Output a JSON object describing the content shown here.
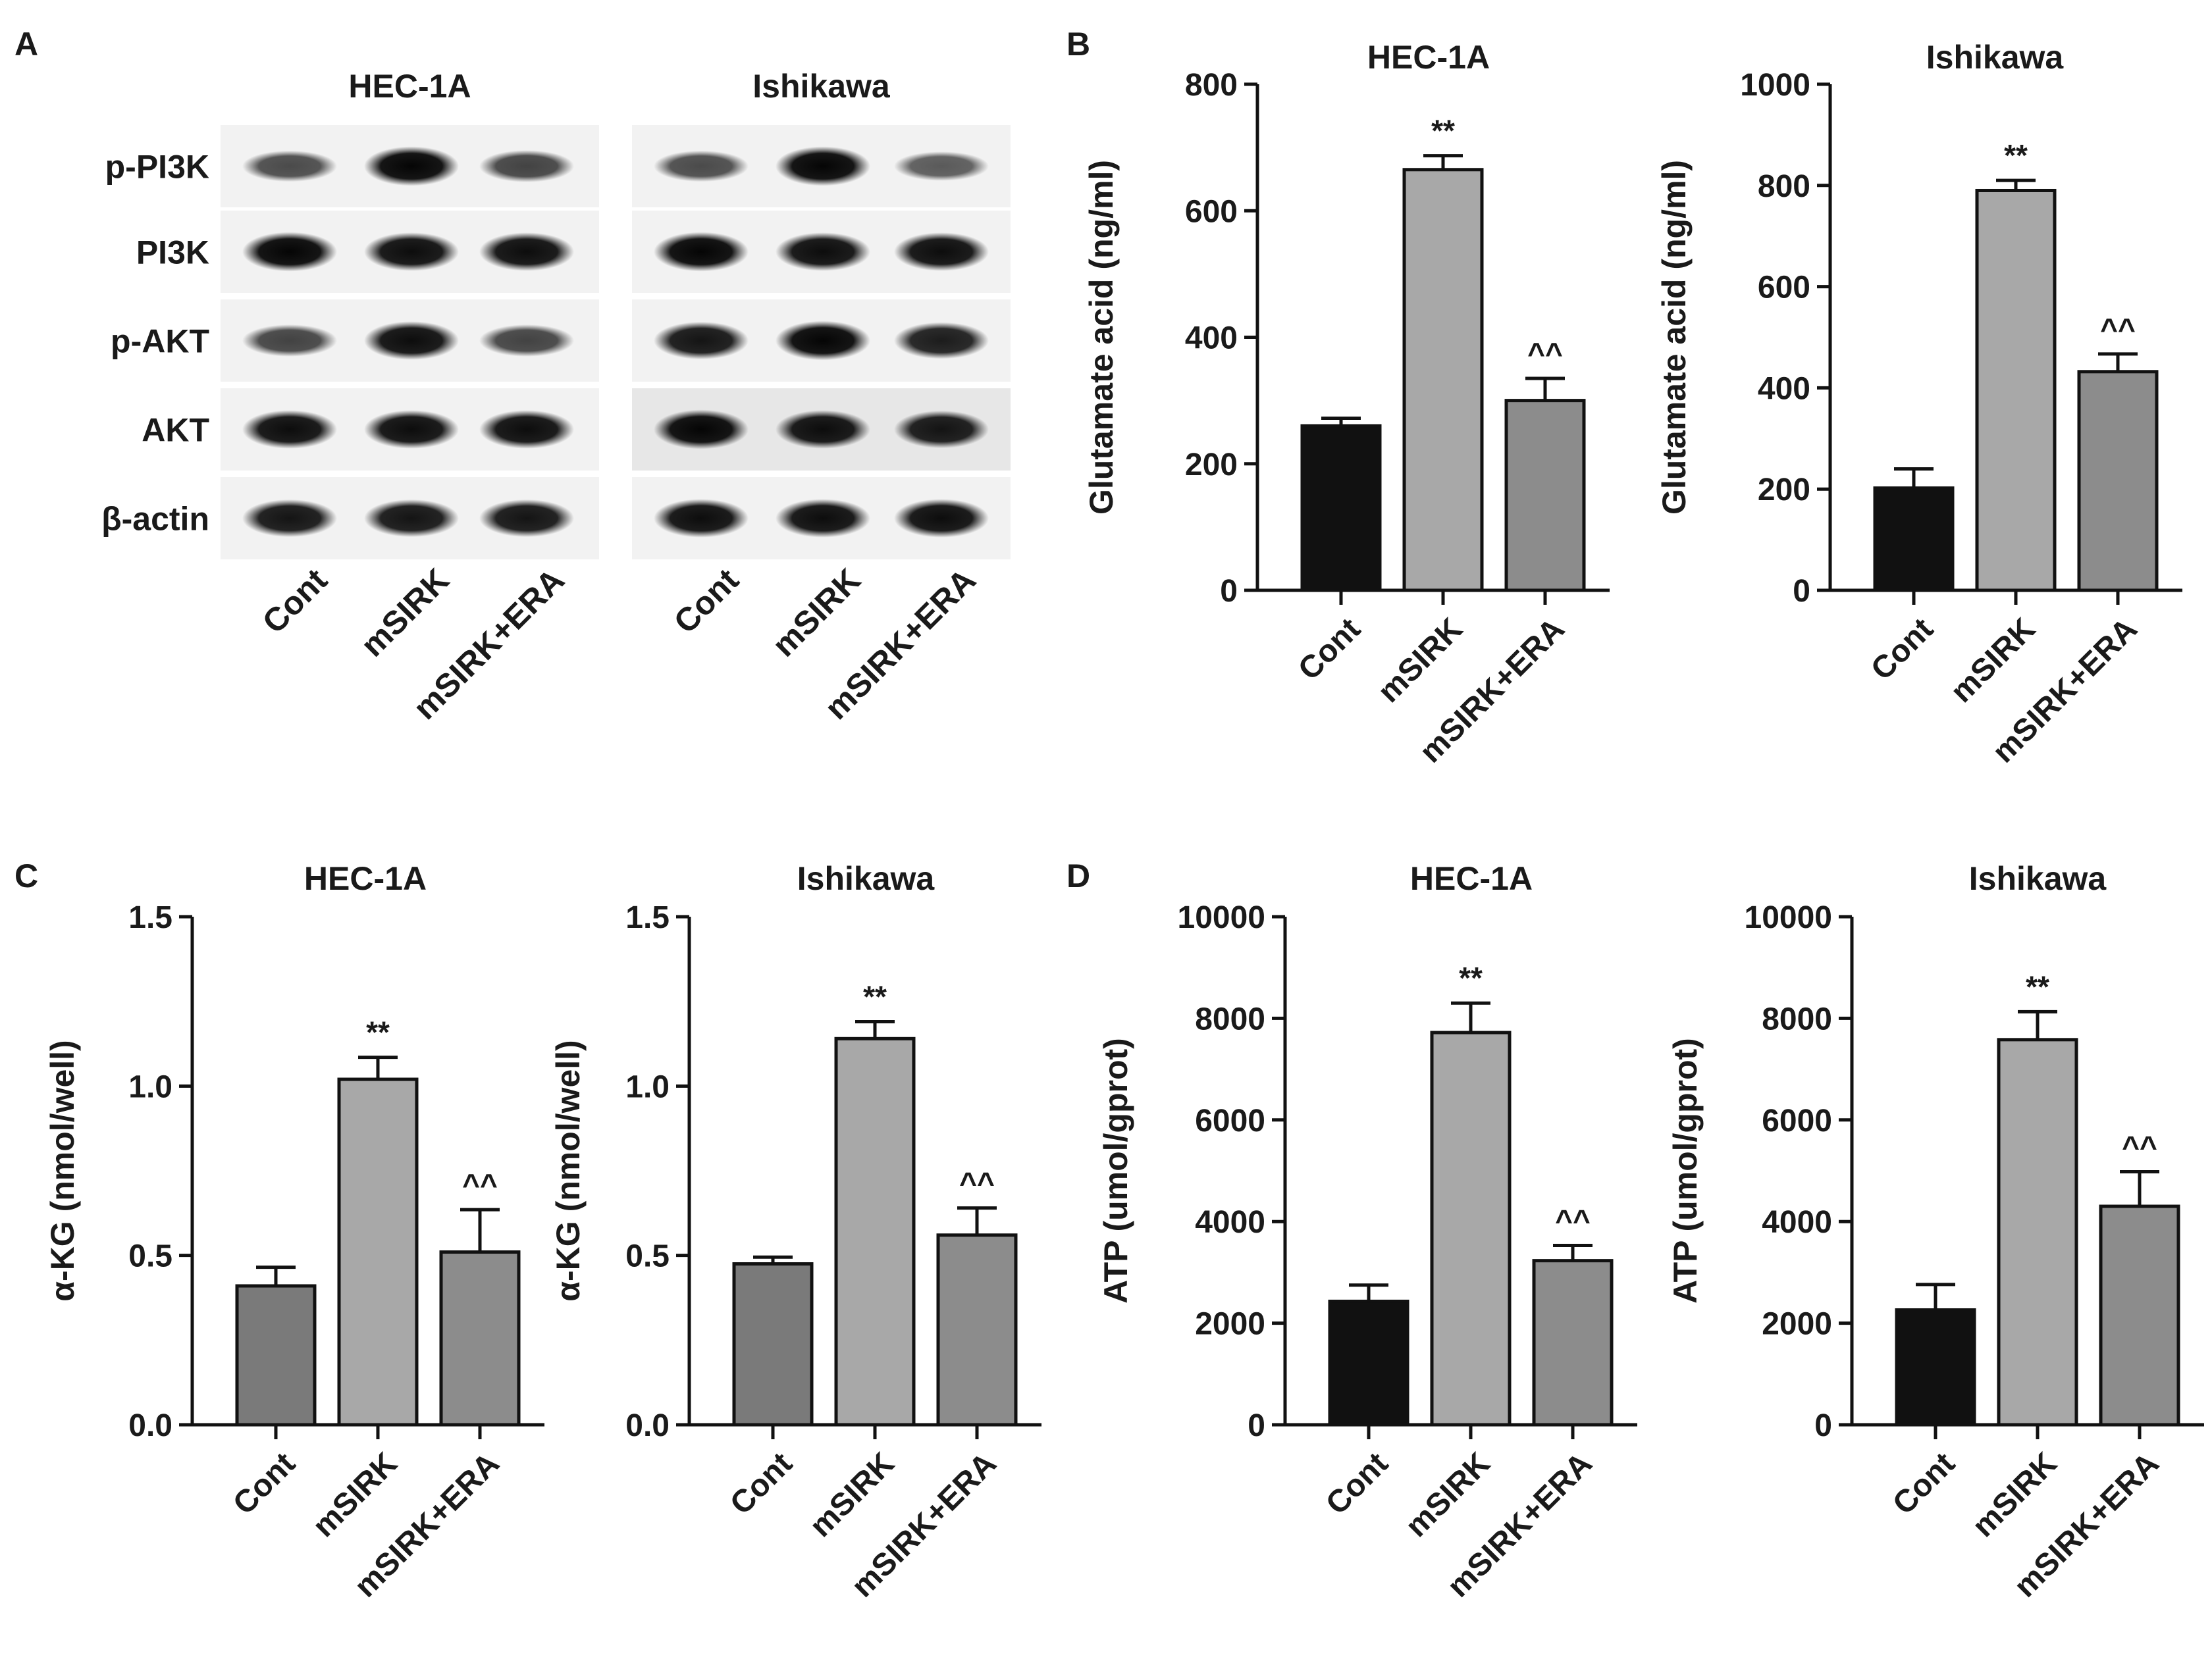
{
  "panel_letters": [
    "A",
    "B",
    "C",
    "D"
  ],
  "blot": {
    "cell_lines": [
      "HEC-1A",
      "Ishikawa"
    ],
    "lanes": [
      "Cont",
      "mSIRK",
      "mSIRK+ERA"
    ],
    "row_labels": [
      "p-PI3K",
      "PI3K",
      "p-AKT",
      "AKT",
      "β-actin"
    ],
    "band_intensity": [
      [
        [
          0.55,
          1.0,
          0.6
        ],
        [
          0.55,
          1.0,
          0.45
        ]
      ],
      [
        [
          1.0,
          0.95,
          0.95
        ],
        [
          1.0,
          0.95,
          0.95
        ]
      ],
      [
        [
          0.6,
          0.95,
          0.6
        ],
        [
          0.9,
          1.0,
          0.85
        ]
      ],
      [
        [
          0.95,
          0.95,
          0.95
        ],
        [
          1.0,
          0.95,
          0.9
        ]
      ],
      [
        [
          0.9,
          0.9,
          0.9
        ],
        [
          0.95,
          0.95,
          0.95
        ]
      ]
    ]
  },
  "chart_data": [
    {
      "panel": "B",
      "type": "bar",
      "title": "HEC-1A",
      "ylabel": "Glutamate acid (ng/ml)",
      "categories": [
        "Cont",
        "mSIRK",
        "mSIRK+ERA"
      ],
      "values": [
        260,
        665,
        300
      ],
      "errors": [
        12,
        22,
        35
      ],
      "significance": [
        "",
        "**",
        "^^"
      ],
      "ylim": [
        0,
        800
      ],
      "yticks": [
        "0",
        "200",
        "400",
        "600",
        "800"
      ],
      "colors": [
        "#111111",
        "#a8a8a8",
        "#8c8c8c"
      ]
    },
    {
      "panel": "B",
      "type": "bar",
      "title": "Ishikawa",
      "ylabel": "Glutamate acid (ng/ml)",
      "categories": [
        "Cont",
        "mSIRK",
        "mSIRK+ERA"
      ],
      "values": [
        202,
        790,
        432
      ],
      "errors": [
        38,
        20,
        35
      ],
      "significance": [
        "",
        "**",
        "^^"
      ],
      "ylim": [
        0,
        1000
      ],
      "yticks": [
        "0",
        "200",
        "400",
        "600",
        "800",
        "1000"
      ],
      "colors": [
        "#111111",
        "#a8a8a8",
        "#8c8c8c"
      ]
    },
    {
      "panel": "C",
      "type": "bar",
      "title": "HEC-1A",
      "ylabel": "α-KG (nmol/well)",
      "categories": [
        "Cont",
        "mSIRK",
        "mSIRK+ERA"
      ],
      "values": [
        0.41,
        1.02,
        0.51
      ],
      "errors": [
        0.055,
        0.065,
        0.125
      ],
      "significance": [
        "",
        "**",
        "^^"
      ],
      "ylim": [
        0,
        1.5
      ],
      "yticks": [
        "0.0",
        "0.5",
        "1.0",
        "1.5"
      ],
      "colors": [
        "#7a7a7a",
        "#a8a8a8",
        "#8c8c8c"
      ]
    },
    {
      "panel": "C",
      "type": "bar",
      "title": "Ishikawa",
      "ylabel": "α-KG (nmol/well)",
      "categories": [
        "Cont",
        "mSIRK",
        "mSIRK+ERA"
      ],
      "values": [
        0.475,
        1.14,
        0.56
      ],
      "errors": [
        0.02,
        0.05,
        0.08
      ],
      "significance": [
        "",
        "**",
        "^^"
      ],
      "ylim": [
        0,
        1.5
      ],
      "yticks": [
        "0.0",
        "0.5",
        "1.0",
        "1.5"
      ],
      "colors": [
        "#7a7a7a",
        "#a8a8a8",
        "#8c8c8c"
      ]
    },
    {
      "panel": "D",
      "type": "bar",
      "title": "HEC-1A",
      "ylabel": "ATP (umol/gprot)",
      "categories": [
        "Cont",
        "mSIRK",
        "mSIRK+ERA"
      ],
      "values": [
        2430,
        7720,
        3230
      ],
      "errors": [
        320,
        580,
        300
      ],
      "significance": [
        "",
        "**",
        "^^"
      ],
      "ylim": [
        0,
        10000
      ],
      "yticks": [
        "0",
        "2000",
        "4000",
        "6000",
        "8000",
        "10000"
      ],
      "colors": [
        "#111111",
        "#a8a8a8",
        "#8c8c8c"
      ]
    },
    {
      "panel": "D",
      "type": "bar",
      "title": "Ishikawa",
      "ylabel": "ATP (umol/gprot)",
      "categories": [
        "Cont",
        "mSIRK",
        "mSIRK+ERA"
      ],
      "values": [
        2260,
        7580,
        4300
      ],
      "errors": [
        500,
        550,
        680
      ],
      "significance": [
        "",
        "**",
        "^^"
      ],
      "ylim": [
        0,
        10000
      ],
      "yticks": [
        "0",
        "2000",
        "4000",
        "6000",
        "8000",
        "10000"
      ],
      "colors": [
        "#111111",
        "#a8a8a8",
        "#8c8c8c"
      ]
    }
  ]
}
